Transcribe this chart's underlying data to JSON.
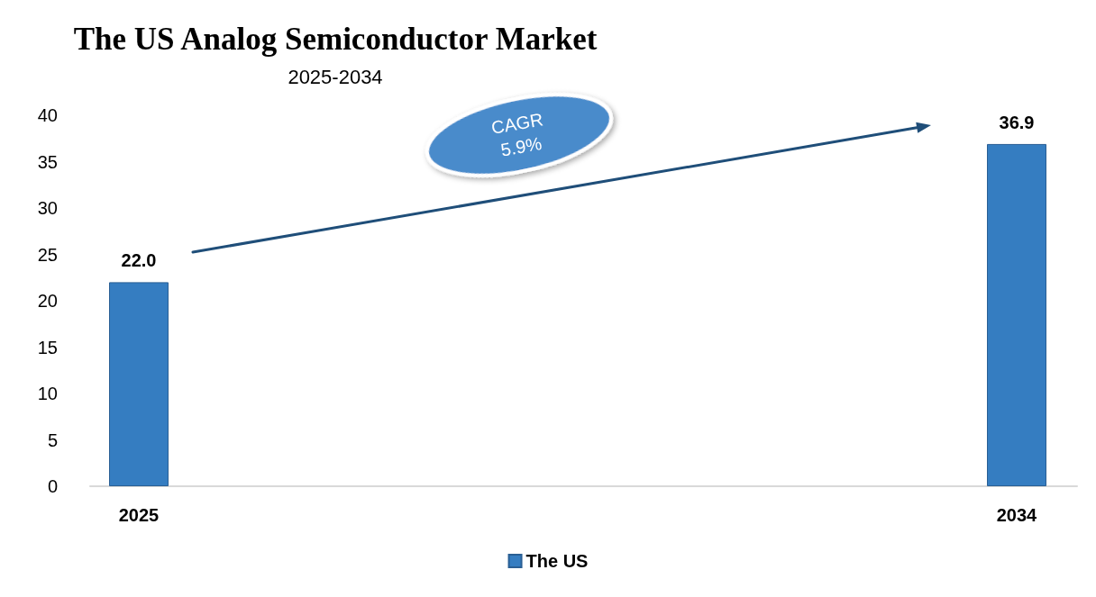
{
  "chart_data": {
    "type": "bar",
    "title": "The US Analog Semiconductor Market",
    "subtitle": "2025-2034",
    "categories": [
      "2025",
      "2034"
    ],
    "series": [
      {
        "name": "The US",
        "color": "#357dc1",
        "values": [
          22.0,
          36.9
        ],
        "value_labels": [
          "22.0",
          "36.9"
        ]
      }
    ],
    "ylim": [
      0,
      40
    ],
    "yticks": [
      0,
      5,
      10,
      15,
      20,
      25,
      30,
      35,
      40
    ],
    "grid": false,
    "legend": "bottom",
    "annotations": [
      "CAGR 5.9%"
    ]
  }
}
